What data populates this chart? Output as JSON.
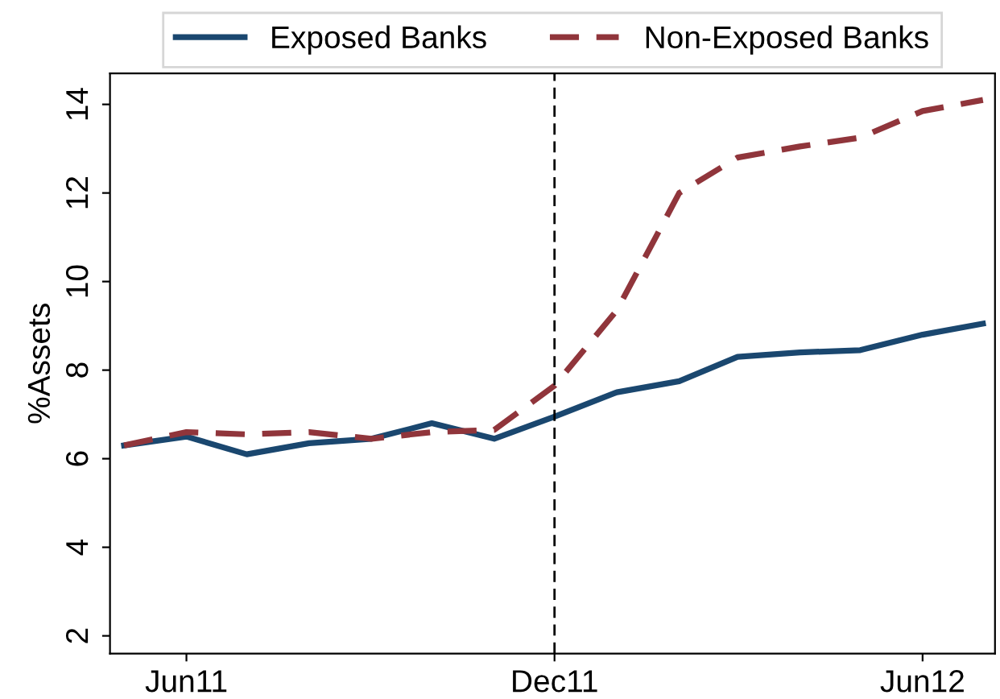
{
  "chart_data": {
    "type": "line",
    "ylabel": "%Assets",
    "x": [
      "2011-05",
      "2011-06",
      "2011-07",
      "2011-08",
      "2011-09",
      "2011-10",
      "2011-11",
      "2011-12",
      "2012-01",
      "2012-02",
      "2012-03",
      "2012-04",
      "2012-05",
      "2012-06",
      "2012-07"
    ],
    "series": [
      {
        "name": "Exposed Banks",
        "color": "#1a476f",
        "line_style": "solid",
        "values": [
          6.3,
          6.5,
          6.1,
          6.35,
          6.45,
          6.8,
          6.45,
          6.95,
          7.5,
          7.75,
          8.3,
          8.4,
          8.45,
          8.8,
          9.05
        ]
      },
      {
        "name": "Non-Exposed Banks",
        "color": "#90353b",
        "line_style": "dashed",
        "values": [
          6.3,
          6.6,
          6.55,
          6.6,
          6.45,
          6.6,
          6.65,
          7.65,
          9.35,
          12.0,
          12.8,
          13.05,
          13.25,
          13.85,
          14.1
        ]
      }
    ],
    "xlim": [
      "2011-04-24",
      "2012-07-07"
    ],
    "xticks": [
      {
        "value": "2011-06",
        "label": "Jun11"
      },
      {
        "value": "2011-12",
        "label": "Dec11"
      },
      {
        "value": "2012-06",
        "label": "Jun12"
      }
    ],
    "ylim": [
      1.6,
      14.7
    ],
    "yticks": [
      2,
      4,
      6,
      8,
      10,
      12,
      14
    ],
    "ref_lines": [
      {
        "axis": "x",
        "value": "2011-12",
        "color": "#000000",
        "line_style": "dashed"
      }
    ],
    "grid": false,
    "legend": "top",
    "marker": "none"
  }
}
